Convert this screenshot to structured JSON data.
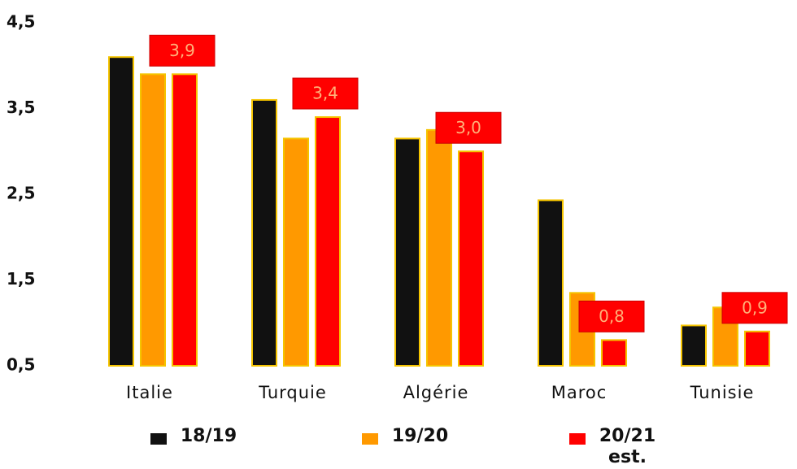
{
  "chart_data": {
    "type": "bar",
    "categories": [
      "Italie",
      "Turquie",
      "Algérie",
      "Maroc",
      "Tunisie"
    ],
    "series": [
      {
        "name": "18/19",
        "color": "#111111",
        "values": [
          4.1,
          3.6,
          3.15,
          2.43,
          0.97
        ]
      },
      {
        "name": "19/20",
        "color": "#ff9900",
        "values": [
          3.9,
          3.15,
          3.25,
          1.35,
          1.18
        ]
      },
      {
        "name": "20/21 est.",
        "color": "#ff0000",
        "values": [
          3.9,
          3.4,
          3.0,
          0.8,
          0.9
        ],
        "value_labels": [
          "3,9",
          "3,4",
          "3,0",
          "0,8",
          "0,9"
        ]
      }
    ],
    "ylim": [
      0.5,
      4.5
    ],
    "yticks": [
      {
        "value": 0.5,
        "label": "0,5"
      },
      {
        "value": 1.5,
        "label": "1,5"
      },
      {
        "value": 2.5,
        "label": "2,5"
      },
      {
        "value": 3.5,
        "label": "3,5"
      },
      {
        "value": 4.5,
        "label": "4,5"
      }
    ],
    "grid": false,
    "legend": "bottom"
  }
}
